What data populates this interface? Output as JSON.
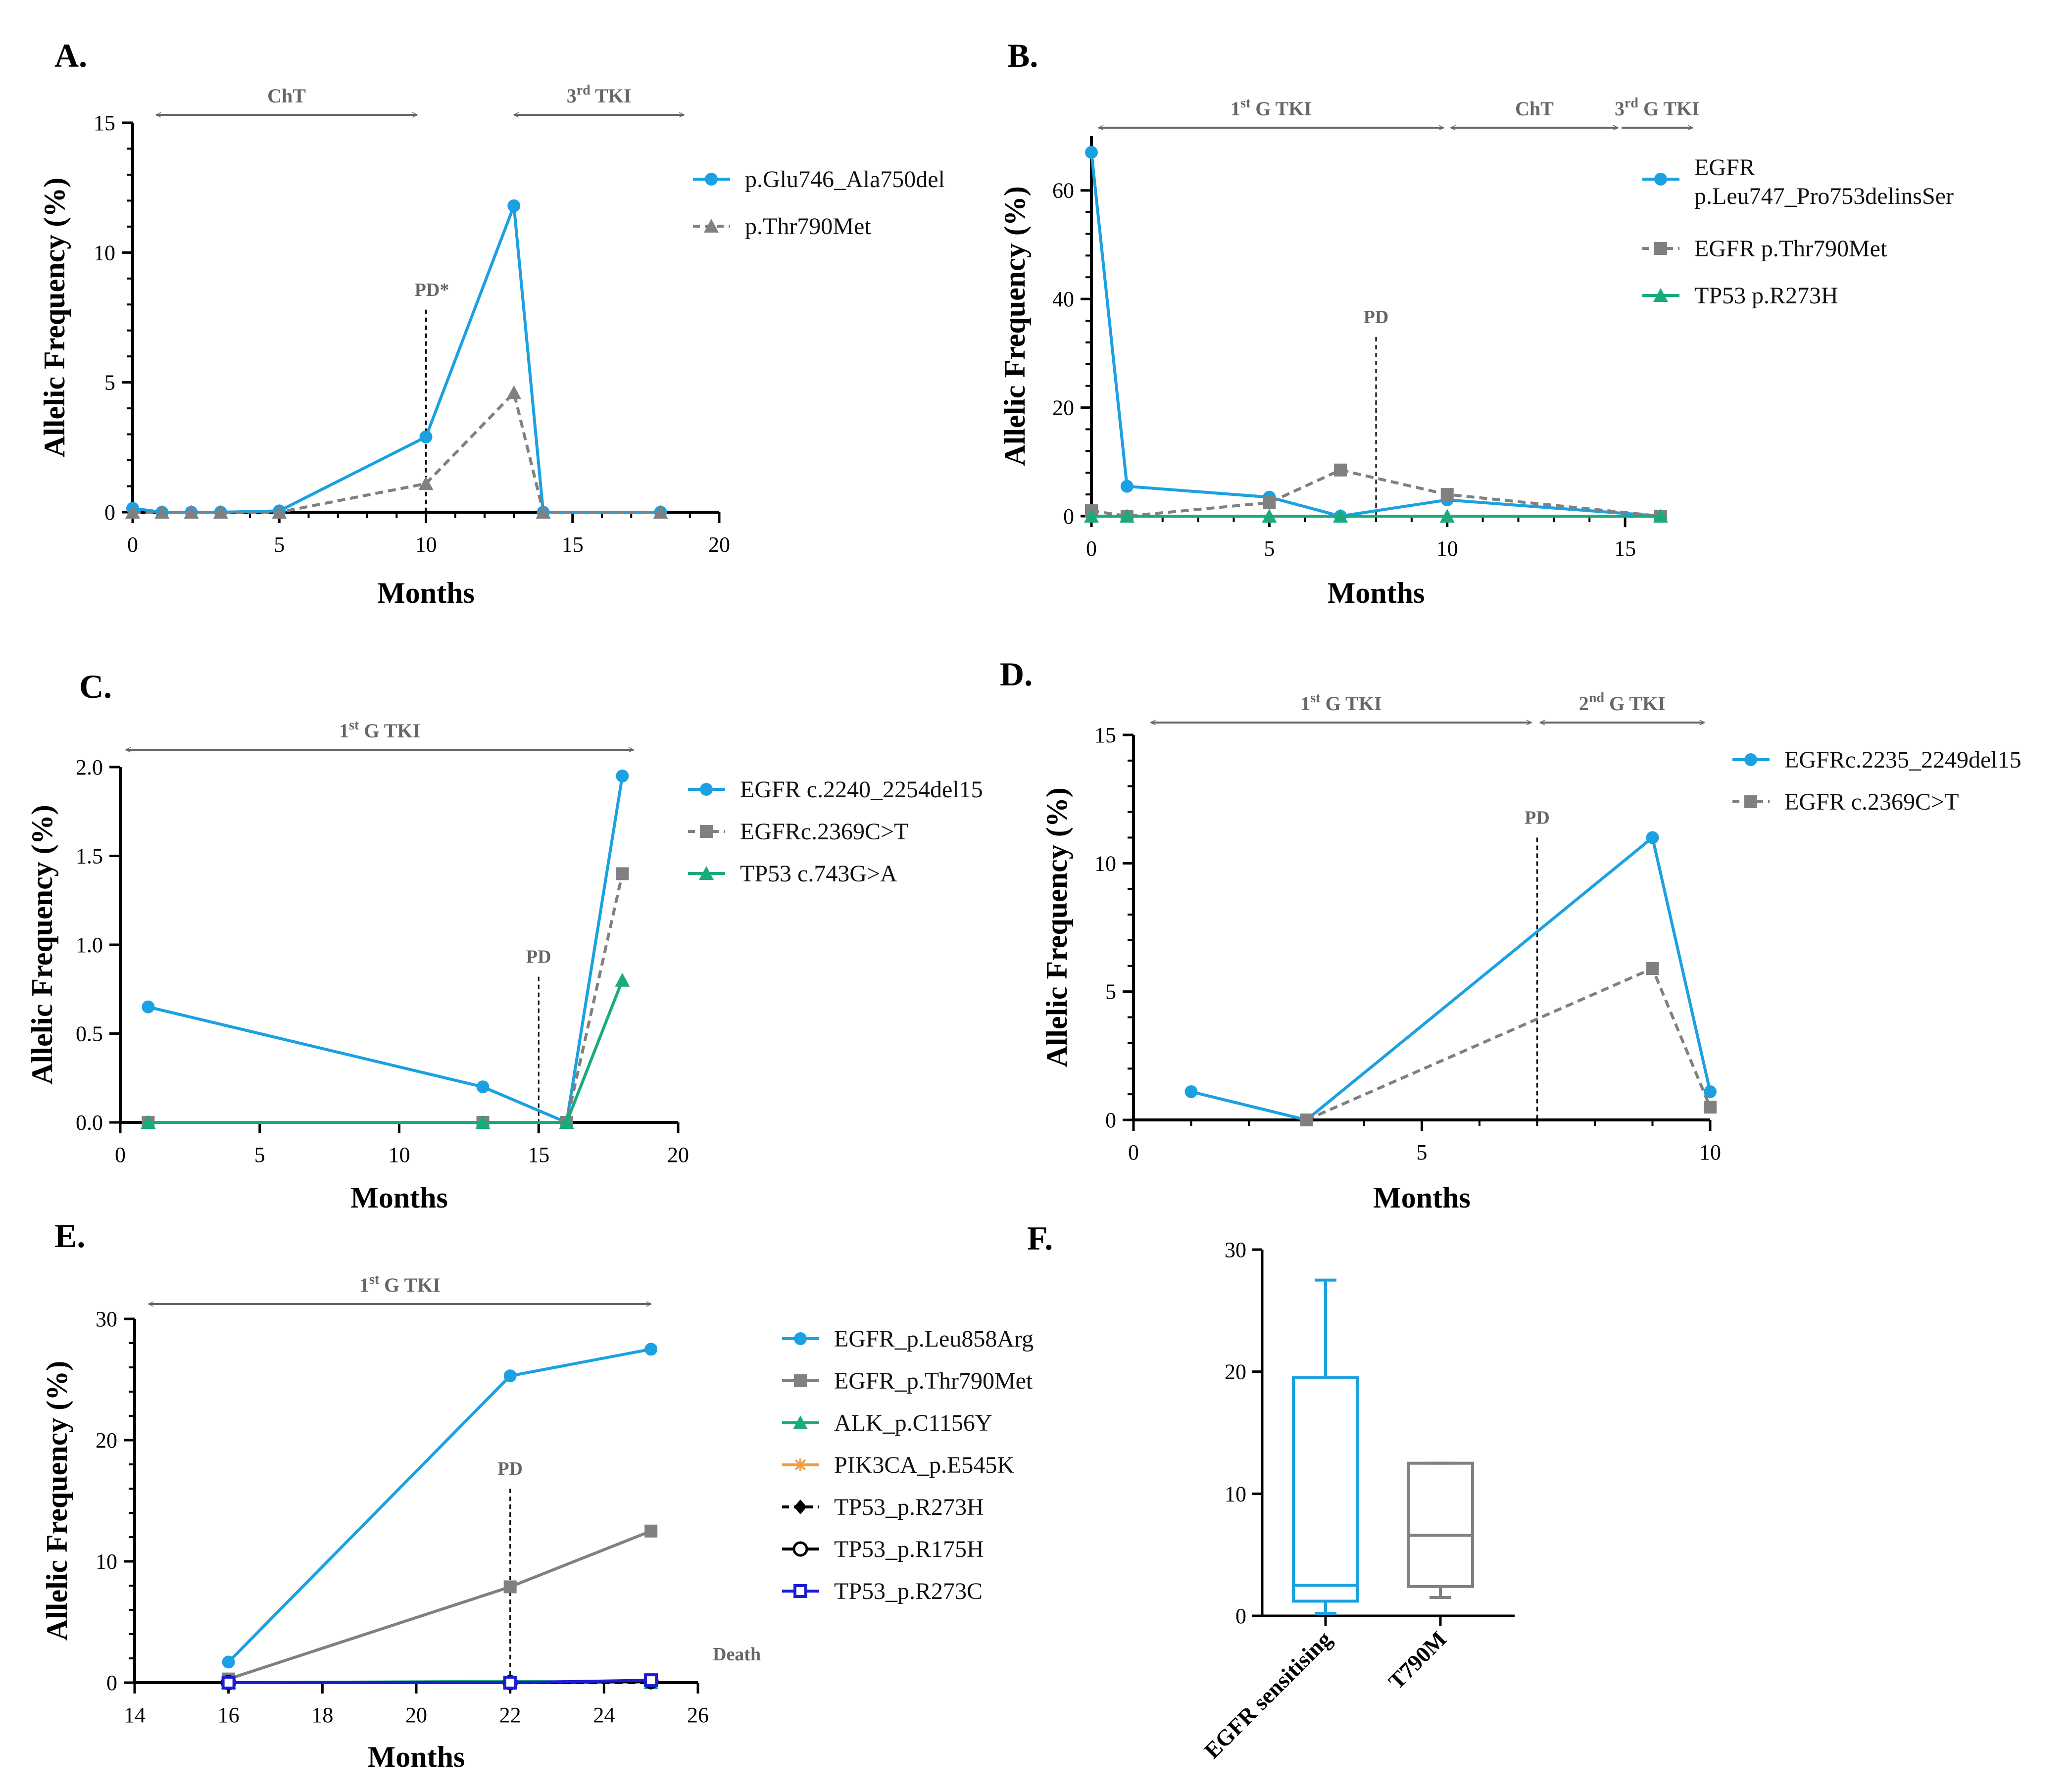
{
  "colors": {
    "blue": "#1ba1e2",
    "gray": "#808080",
    "green": "#1aab7a",
    "orange": "#f39c3a",
    "black": "#000000",
    "navy": "#1c1cd6",
    "arrow": "#666666"
  },
  "chart_data": [
    {
      "id": "A",
      "letter": "A.",
      "type": "line",
      "xlabel": "Months",
      "ylabel": "Allelic Frequency (%)",
      "xlim": [
        0,
        20
      ],
      "ylim": [
        0,
        15
      ],
      "xticks": [
        0,
        5,
        10,
        15,
        20
      ],
      "yticks": [
        0,
        5,
        10,
        15
      ],
      "therapies": [
        {
          "label": "ChT",
          "sup": "",
          "tail": "",
          "x0": 0.8,
          "x1": 9.7,
          "heads": "both"
        },
        {
          "label": "3",
          "sup": "rd",
          "tail": " TKI",
          "x0": 13.0,
          "x1": 18.8,
          "heads": "both"
        }
      ],
      "progression": {
        "label": "PD*",
        "x": 10
      },
      "series": [
        {
          "name": "p.Glu746_Ala750del",
          "color": "blue",
          "dash": false,
          "marker": "circle",
          "x": [
            0,
            1,
            2,
            3,
            5,
            10,
            13,
            14,
            18
          ],
          "y": [
            0.15,
            0,
            0,
            0,
            0.05,
            2.9,
            11.8,
            0,
            0
          ]
        },
        {
          "name": "p.Thr790Met",
          "color": "gray",
          "dash": true,
          "marker": "triangle",
          "x": [
            0,
            1,
            2,
            3,
            5,
            10,
            13,
            14,
            18
          ],
          "y": [
            0,
            0,
            0,
            0,
            0,
            1.1,
            4.6,
            0,
            0
          ]
        }
      ]
    },
    {
      "id": "B",
      "letter": "B.",
      "type": "line",
      "xlabel": "Months",
      "ylabel": "Allelic Frequency (%)",
      "xlim": [
        0,
        16
      ],
      "ylim": [
        0,
        70
      ],
      "xticks": [
        0,
        5,
        10,
        15
      ],
      "yticks": [
        0,
        20,
        40,
        60
      ],
      "therapies": [
        {
          "label": "1",
          "sup": "st",
          "tail": " G TKI",
          "x0": 0.2,
          "x1": 9.9,
          "heads": "both"
        },
        {
          "label": "ChT",
          "sup": "",
          "tail": "",
          "x0": 10.1,
          "x1": 14.8,
          "heads": "both"
        },
        {
          "label": "3",
          "sup": "rd",
          "tail": " G TKI",
          "x0": 14.9,
          "x1": 16.9,
          "heads": "right"
        }
      ],
      "progression": {
        "label": "PD",
        "x": 8
      },
      "series": [
        {
          "name_lines": [
            "EGFR",
            "p.Leu747_Pro753delinsSer"
          ],
          "name": "EGFR p.Leu747_Pro753delinsSer",
          "color": "blue",
          "dash": false,
          "marker": "circle",
          "x": [
            0,
            1,
            5,
            7,
            10,
            16
          ],
          "y": [
            67,
            5.5,
            3.5,
            0,
            3,
            0
          ]
        },
        {
          "name": "EGFR p.Thr790Met",
          "color": "gray",
          "dash": true,
          "marker": "square",
          "x": [
            0,
            1,
            5,
            7,
            10,
            16
          ],
          "y": [
            1,
            0,
            2.5,
            8.5,
            4,
            0
          ]
        },
        {
          "name": "TP53 p.R273H",
          "color": "green",
          "dash": false,
          "marker": "triangle",
          "x": [
            0,
            1,
            5,
            7,
            10,
            16
          ],
          "y": [
            0,
            0,
            0,
            0,
            0,
            0
          ]
        }
      ]
    },
    {
      "id": "C",
      "letter": "C.",
      "type": "line",
      "xlabel": "Months",
      "ylabel": "Allelic Frequency (%)",
      "xlim": [
        0,
        20
      ],
      "ylim": [
        0,
        2.0
      ],
      "xticks": [
        0,
        5,
        10,
        15,
        20
      ],
      "yticks": [
        0.0,
        0.5,
        1.0,
        1.5,
        2.0
      ],
      "therapies": [
        {
          "label": "1",
          "sup": "st",
          "tail": " G TKI",
          "x0": 0.2,
          "x1": 18.4,
          "heads": "both"
        }
      ],
      "progression": {
        "label": "PD",
        "x": 15
      },
      "series": [
        {
          "name": "EGFR c.2240_2254del15",
          "color": "blue",
          "dash": false,
          "marker": "circle",
          "x": [
            1,
            13,
            16,
            18
          ],
          "y": [
            0.65,
            0.2,
            0,
            1.95
          ]
        },
        {
          "name": "EGFRc.2369C>T",
          "color": "gray",
          "dash": true,
          "marker": "square",
          "x": [
            1,
            13,
            16,
            18
          ],
          "y": [
            0,
            0,
            0,
            1.4
          ]
        },
        {
          "name": "TP53 c.743G>A",
          "color": "green",
          "dash": false,
          "marker": "triangle",
          "x": [
            1,
            13,
            16,
            18
          ],
          "y": [
            0,
            0,
            0,
            0.8
          ]
        }
      ]
    },
    {
      "id": "D",
      "letter": "D.",
      "type": "line",
      "xlabel": "Months",
      "ylabel": "Allelic Frequency (%)",
      "xlim": [
        0,
        10
      ],
      "ylim": [
        0,
        15
      ],
      "xticks": [
        0,
        5,
        10
      ],
      "yticks": [
        0,
        5,
        10,
        15
      ],
      "therapies": [
        {
          "label": "1",
          "sup": "st",
          "tail": " G TKI",
          "x0": 0.3,
          "x1": 6.9,
          "heads": "both"
        },
        {
          "label": "2",
          "sup": "nd",
          "tail": " G TKI",
          "x0": 7.05,
          "x1": 9.9,
          "heads": "both"
        }
      ],
      "progression": {
        "label": "PD",
        "x": 7
      },
      "series": [
        {
          "name": "EGFRc.2235_2249del15",
          "color": "blue",
          "dash": false,
          "marker": "circle",
          "x": [
            1,
            3,
            9,
            10
          ],
          "y": [
            1.1,
            0,
            11,
            1.1
          ]
        },
        {
          "name": "EGFR c.2369C>T",
          "color": "gray",
          "dash": true,
          "marker": "square",
          "x": [
            3,
            9,
            10
          ],
          "y": [
            0,
            5.9,
            0.5
          ]
        }
      ]
    },
    {
      "id": "E",
      "letter": "E.",
      "type": "line",
      "xlabel": "Months",
      "ylabel": "Allelic Frequency (%)",
      "xlim": [
        14,
        26
      ],
      "ylim": [
        0,
        30
      ],
      "xticks": [
        14,
        16,
        18,
        20,
        22,
        24,
        26
      ],
      "yticks": [
        0,
        10,
        20,
        30
      ],
      "therapies": [
        {
          "label": "1",
          "sup": "st",
          "tail": " G TKI",
          "x0": 14.3,
          "x1": 25.0,
          "heads": "both"
        }
      ],
      "progression": {
        "label": "PD",
        "x": 22
      },
      "end_note": "Death",
      "series": [
        {
          "name": "EGFR_p.Leu858Arg",
          "color": "blue",
          "dash": false,
          "marker": "circle",
          "x": [
            16,
            22,
            25
          ],
          "y": [
            1.7,
            25.3,
            27.5
          ]
        },
        {
          "name": "EGFR_p.Thr790Met",
          "color": "gray",
          "dash": false,
          "marker": "square",
          "x": [
            16,
            22,
            25
          ],
          "y": [
            0.3,
            7.9,
            12.5
          ]
        },
        {
          "name": "ALK_p.C1156Y",
          "color": "green",
          "dash": false,
          "marker": "triangle",
          "x": [
            16,
            22,
            25
          ],
          "y": [
            0,
            0.1,
            0
          ]
        },
        {
          "name": "PIK3CA_p.E545K",
          "color": "orange",
          "dash": false,
          "marker": "star",
          "x": [
            16,
            22,
            25
          ],
          "y": [
            0,
            0,
            0
          ]
        },
        {
          "name": "TP53_p.R273H",
          "color": "black",
          "dash": true,
          "marker": "diamond",
          "x": [
            16,
            22,
            25
          ],
          "y": [
            0,
            0,
            0
          ]
        },
        {
          "name": "TP53_p.R175H",
          "color": "black",
          "dash": false,
          "marker": "opencircle",
          "x": [
            16,
            22,
            25
          ],
          "y": [
            0,
            0,
            0.1
          ]
        },
        {
          "name": "TP53_p.R273C",
          "color": "navy",
          "dash": false,
          "marker": "opensquare",
          "x": [
            16,
            22,
            25
          ],
          "y": [
            0,
            0,
            0.2
          ]
        }
      ]
    },
    {
      "id": "F",
      "letter": "F.",
      "type": "box",
      "ylim": [
        0,
        30
      ],
      "yticks": [
        0,
        10,
        20,
        30
      ],
      "boxes": [
        {
          "category": "EGFR sensitising",
          "color": "blue",
          "min": 0.2,
          "q1": 1.2,
          "median": 2.5,
          "q3": 19.5,
          "max": 27.5
        },
        {
          "category": "T790M",
          "color": "gray",
          "min": 1.5,
          "q1": 2.4,
          "median": 6.6,
          "q3": 12.5,
          "max": 12.5
        }
      ]
    }
  ]
}
